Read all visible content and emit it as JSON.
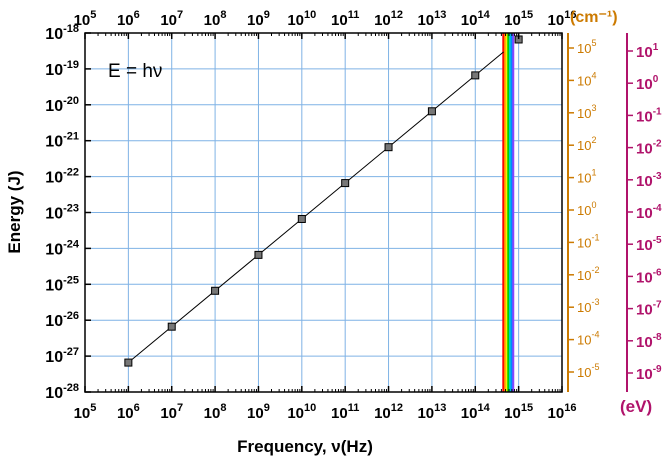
{
  "chart_data": {
    "type": "scatter",
    "x_scale": "log",
    "y_scale": "log",
    "xlabel": "Frequency, ν(Hz)",
    "ylabel": "Energy (J)",
    "annotation": "E = hν",
    "xlim_exp": [
      5,
      16
    ],
    "ylim_exp": [
      -28,
      -18
    ],
    "x_tick_exponents": [
      5,
      6,
      7,
      8,
      9,
      10,
      11,
      12,
      13,
      14,
      15,
      16
    ],
    "y_tick_exponents": [
      -28,
      -27,
      -26,
      -25,
      -24,
      -23,
      -22,
      -21,
      -20,
      -19,
      -18
    ],
    "series": [
      {
        "x": [
          1000000.0,
          10000000.0,
          100000000.0,
          1000000000.0,
          10000000000.0,
          100000000000.0,
          1000000000000.0,
          10000000000000.0,
          100000000000000.0,
          1000000000000000.0
        ],
        "y": [
          6.6e-28,
          6.6e-27,
          6.6e-26,
          6.6e-25,
          6.6e-24,
          6.6e-23,
          6.6e-22,
          6.6e-21,
          6.6e-20,
          6.6e-19
        ]
      }
    ],
    "fit_line": {
      "from_x": 1000000.0,
      "to_x": 450000000000000.0,
      "relation": "E = hν"
    },
    "visible_band": {
      "from_x": 420000000000000.0,
      "to_x": 780000000000000.0,
      "colors": [
        "#ff0000",
        "#ff8800",
        "#ffee00",
        "#00cc00",
        "#00cccc",
        "#0088ff",
        "#8844ff"
      ]
    },
    "right_axis_wavenumber": {
      "unit": "(cm⁻¹)",
      "tick_exponents": [
        -5,
        -4,
        -3,
        -2,
        -1,
        0,
        1,
        2,
        3,
        4,
        5
      ]
    },
    "right_axis_ev": {
      "unit": "(eV)",
      "tick_exponents": [
        -9,
        -8,
        -7,
        -6,
        -5,
        -4,
        -3,
        -2,
        -1,
        0,
        1
      ]
    },
    "colors": {
      "grid": "#7fb2e5",
      "wavenumber_axis": "#cc7a00",
      "ev_axis": "#b0136b",
      "marker_fill": "#777777"
    }
  }
}
